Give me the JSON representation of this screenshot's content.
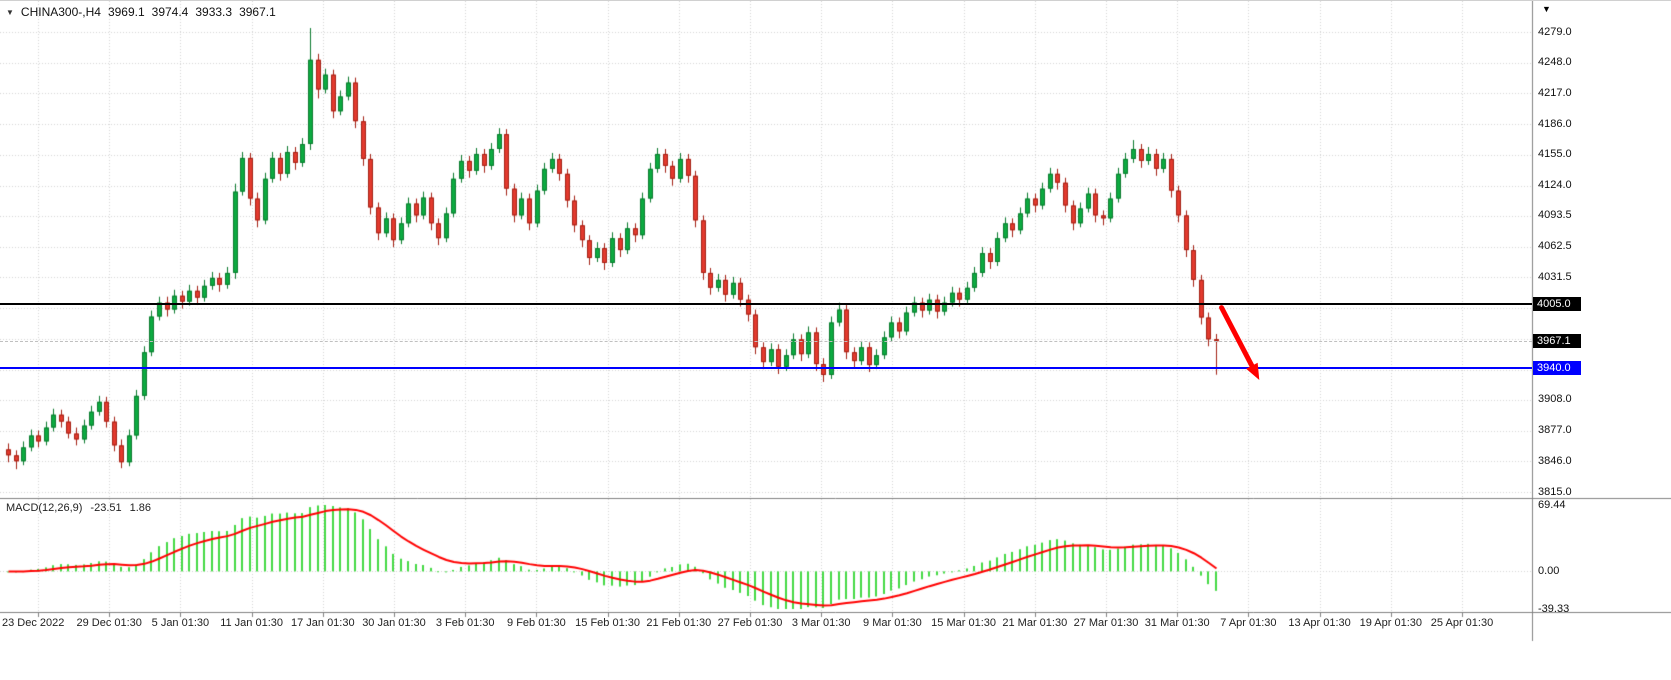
{
  "header": {
    "dropdown_icon": "▼",
    "symbol_period": "CHINA300-,H4",
    "open": "3969.1",
    "high": "3974.4",
    "low": "3933.3",
    "close": "3967.1"
  },
  "price_axis": {
    "top_icon": "▼",
    "labels": [
      {
        "text": "4279.0",
        "value": 4279.0
      },
      {
        "text": "4248.0",
        "value": 4248.0
      },
      {
        "text": "4217.0",
        "value": 4217.0
      },
      {
        "text": "4186.0",
        "value": 4186.0
      },
      {
        "text": "4155.0",
        "value": 4155.0
      },
      {
        "text": "4124.0",
        "value": 4124.0
      },
      {
        "text": "4093.5",
        "value": 4093.5
      },
      {
        "text": "4062.5",
        "value": 4062.5
      },
      {
        "text": "4031.5",
        "value": 4031.5
      },
      {
        "text": "3908.0",
        "value": 3908.0
      },
      {
        "text": "3877.0",
        "value": 3877.0
      },
      {
        "text": "3846.0",
        "value": 3846.0
      },
      {
        "text": "3815.0",
        "value": 3815.0
      }
    ],
    "grid_values": [
      4279,
      4248,
      4217,
      4186,
      4155,
      4124,
      4093.5,
      4062.5,
      4031.5,
      4000.5,
      3969.5,
      3938.5,
      3908,
      3877,
      3846,
      3815
    ]
  },
  "lines": {
    "resistance": {
      "label": "4005.0",
      "value": 4005.0,
      "color": "#000000"
    },
    "bid": {
      "label": "3967.1",
      "value": 3967.1,
      "color": "#000000"
    },
    "support": {
      "label": "3940.0",
      "value": 3940.0,
      "color": "#0000ff"
    }
  },
  "macd": {
    "title": "MACD(12,26,9)",
    "value_main": "-23.51",
    "value_signal": "1.86",
    "axis_labels": [
      {
        "text": "69.44",
        "value": 69.44
      },
      {
        "text": "0.00",
        "value": 0
      },
      {
        "text": "-39.33",
        "value": -39.33
      }
    ]
  },
  "colors": {
    "bull_fill": "#0caa41",
    "bull_edge": "#0b7a2e",
    "bear_fill": "#e23a2e",
    "bear_edge": "#a32014",
    "grid": "#d4d4d4",
    "separator": "#808080",
    "macd_bar": "#44d944",
    "macd_signal": "#ff0000",
    "axis_text": "#111111",
    "arrow": "#ff0000"
  },
  "chart_data": {
    "type": "candlestick",
    "title": "CHINA300- H4 candlestick chart with MACD(12,26,9) sub-window",
    "symbol": "CHINA300-",
    "timeframe": "H4",
    "y_axis": {
      "min": 3815.0,
      "max": 4279.0
    },
    "current_bar": {
      "open": 3969.1,
      "high": 3974.4,
      "low": 3933.3,
      "close": 3967.1
    },
    "x_tick_labels": [
      "23 Dec 2022",
      "29 Dec 01:30",
      "5 Jan 01:30",
      "11 Jan 01:30",
      "17 Jan 01:30",
      "30 Jan 01:30",
      "3 Feb 01:30",
      "9 Feb 01:30",
      "15 Feb 01:30",
      "21 Feb 01:30",
      "27 Feb 01:30",
      "3 Mar 01:30",
      "9 Mar 01:30",
      "15 Mar 01:30",
      "21 Mar 01:30",
      "27 Mar 01:30",
      "31 Mar 01:30",
      "7 Apr 01:30",
      "13 Apr 01:30",
      "19 Apr 01:30",
      "25 Apr 01:30"
    ],
    "candles": [
      [
        3858,
        3864,
        3845,
        3852
      ],
      [
        3852,
        3857,
        3838,
        3846
      ],
      [
        3846,
        3866,
        3842,
        3860
      ],
      [
        3860,
        3878,
        3856,
        3872
      ],
      [
        3872,
        3877,
        3860,
        3866
      ],
      [
        3866,
        3886,
        3862,
        3880
      ],
      [
        3880,
        3899,
        3876,
        3893
      ],
      [
        3893,
        3898,
        3880,
        3886
      ],
      [
        3886,
        3891,
        3869,
        3874
      ],
      [
        3874,
        3880,
        3862,
        3868
      ],
      [
        3868,
        3888,
        3864,
        3882
      ],
      [
        3882,
        3902,
        3878,
        3896
      ],
      [
        3896,
        3912,
        3892,
        3906
      ],
      [
        3906,
        3911,
        3880,
        3886
      ],
      [
        3886,
        3891,
        3856,
        3862
      ],
      [
        3862,
        3868,
        3839,
        3845
      ],
      [
        3845,
        3878,
        3841,
        3872
      ],
      [
        3872,
        3918,
        3868,
        3912
      ],
      [
        3912,
        3962,
        3908,
        3956
      ],
      [
        3956,
        3998,
        3952,
        3992
      ],
      [
        3992,
        4012,
        3988,
        4006
      ],
      [
        4006,
        4012,
        3992,
        3999
      ],
      [
        3999,
        4019,
        3995,
        4013
      ],
      [
        4013,
        4018,
        4000,
        4007
      ],
      [
        4007,
        4024,
        4003,
        4018
      ],
      [
        4018,
        4023,
        4004,
        4011
      ],
      [
        4011,
        4029,
        4007,
        4023
      ],
      [
        4023,
        4037,
        4019,
        4031
      ],
      [
        4031,
        4036,
        4017,
        4024
      ],
      [
        4024,
        4042,
        4020,
        4036
      ],
      [
        4036,
        4126,
        4030,
        4118
      ],
      [
        4118,
        4158,
        4114,
        4152
      ],
      [
        4152,
        4157,
        4104,
        4111
      ],
      [
        4111,
        4117,
        4082,
        4089
      ],
      [
        4089,
        4137,
        4085,
        4131
      ],
      [
        4131,
        4158,
        4127,
        4152
      ],
      [
        4152,
        4157,
        4129,
        4136
      ],
      [
        4136,
        4164,
        4132,
        4158
      ],
      [
        4158,
        4163,
        4140,
        4147
      ],
      [
        4147,
        4172,
        4143,
        4166
      ],
      [
        4166,
        4283,
        4160,
        4251
      ],
      [
        4251,
        4257,
        4212,
        4221
      ],
      [
        4221,
        4242,
        4217,
        4236
      ],
      [
        4236,
        4241,
        4192,
        4199
      ],
      [
        4199,
        4220,
        4195,
        4214
      ],
      [
        4214,
        4234,
        4210,
        4228
      ],
      [
        4228,
        4233,
        4182,
        4189
      ],
      [
        4189,
        4194,
        4144,
        4151
      ],
      [
        4151,
        4156,
        4095,
        4102
      ],
      [
        4102,
        4107,
        4069,
        4076
      ],
      [
        4076,
        4097,
        4072,
        4091
      ],
      [
        4091,
        4096,
        4062,
        4069
      ],
      [
        4069,
        4092,
        4065,
        4086
      ],
      [
        4086,
        4112,
        4082,
        4106
      ],
      [
        4106,
        4111,
        4087,
        4094
      ],
      [
        4094,
        4118,
        4090,
        4112
      ],
      [
        4112,
        4117,
        4079,
        4086
      ],
      [
        4086,
        4091,
        4064,
        4071
      ],
      [
        4071,
        4102,
        4067,
        4096
      ],
      [
        4096,
        4137,
        4092,
        4131
      ],
      [
        4131,
        4155,
        4127,
        4149
      ],
      [
        4149,
        4154,
        4132,
        4139
      ],
      [
        4139,
        4162,
        4135,
        4156
      ],
      [
        4156,
        4161,
        4137,
        4144
      ],
      [
        4144,
        4167,
        4140,
        4161
      ],
      [
        4161,
        4182,
        4157,
        4176
      ],
      [
        4176,
        4181,
        4114,
        4121
      ],
      [
        4121,
        4126,
        4087,
        4094
      ],
      [
        4094,
        4117,
        4090,
        4111
      ],
      [
        4111,
        4116,
        4079,
        4086
      ],
      [
        4086,
        4125,
        4082,
        4119
      ],
      [
        4119,
        4147,
        4115,
        4141
      ],
      [
        4141,
        4157,
        4137,
        4151
      ],
      [
        4151,
        4156,
        4129,
        4136
      ],
      [
        4136,
        4141,
        4102,
        4109
      ],
      [
        4109,
        4114,
        4077,
        4084
      ],
      [
        4084,
        4089,
        4062,
        4069
      ],
      [
        4069,
        4074,
        4044,
        4051
      ],
      [
        4051,
        4067,
        4047,
        4061
      ],
      [
        4061,
        4066,
        4039,
        4046
      ],
      [
        4046,
        4077,
        4042,
        4071
      ],
      [
        4071,
        4076,
        4052,
        4059
      ],
      [
        4059,
        4087,
        4055,
        4081
      ],
      [
        4081,
        4086,
        4067,
        4074
      ],
      [
        4074,
        4117,
        4070,
        4111
      ],
      [
        4111,
        4147,
        4107,
        4141
      ],
      [
        4141,
        4162,
        4137,
        4156
      ],
      [
        4156,
        4161,
        4137,
        4144
      ],
      [
        4144,
        4149,
        4124,
        4131
      ],
      [
        4131,
        4157,
        4127,
        4151
      ],
      [
        4151,
        4156,
        4127,
        4134
      ],
      [
        4134,
        4139,
        4082,
        4089
      ],
      [
        4089,
        4094,
        4029,
        4036
      ],
      [
        4036,
        4041,
        4014,
        4021
      ],
      [
        4021,
        4035,
        4017,
        4029
      ],
      [
        4029,
        4034,
        4007,
        4014
      ],
      [
        4014,
        4032,
        4010,
        4026
      ],
      [
        4026,
        4031,
        4002,
        4009
      ],
      [
        4009,
        4014,
        3987,
        3994
      ],
      [
        3994,
        3999,
        3954,
        3961
      ],
      [
        3961,
        3966,
        3939,
        3946
      ],
      [
        3946,
        3965,
        3942,
        3959
      ],
      [
        3959,
        3964,
        3934,
        3941
      ],
      [
        3941,
        3959,
        3937,
        3953
      ],
      [
        3953,
        3975,
        3949,
        3969
      ],
      [
        3969,
        3974,
        3947,
        3954
      ],
      [
        3954,
        3982,
        3950,
        3976
      ],
      [
        3976,
        3981,
        3937,
        3944
      ],
      [
        3944,
        3950,
        3926,
        3933
      ],
      [
        3933,
        3992,
        3929,
        3986
      ],
      [
        3986,
        4006,
        3982,
        3999
      ],
      [
        3999,
        4004,
        3949,
        3956
      ],
      [
        3956,
        3961,
        3940,
        3947
      ],
      [
        3947,
        3967,
        3943,
        3961
      ],
      [
        3961,
        3966,
        3936,
        3943
      ],
      [
        3943,
        3959,
        3939,
        3953
      ],
      [
        3953,
        3977,
        3949,
        3971
      ],
      [
        3971,
        3992,
        3967,
        3986
      ],
      [
        3986,
        3991,
        3970,
        3977
      ],
      [
        3977,
        4002,
        3973,
        3996
      ],
      [
        3996,
        4012,
        3992,
        4006
      ],
      [
        4006,
        4011,
        3991,
        3998
      ],
      [
        3998,
        4015,
        3994,
        4009
      ],
      [
        4009,
        4014,
        3990,
        3997
      ],
      [
        3997,
        4012,
        3993,
        4006
      ],
      [
        4006,
        4022,
        4002,
        4016
      ],
      [
        4016,
        4021,
        4002,
        4009
      ],
      [
        4009,
        4027,
        4005,
        4021
      ],
      [
        4021,
        4042,
        4017,
        4036
      ],
      [
        4036,
        4062,
        4032,
        4056
      ],
      [
        4056,
        4061,
        4040,
        4047
      ],
      [
        4047,
        4077,
        4043,
        4071
      ],
      [
        4071,
        4092,
        4067,
        4086
      ],
      [
        4086,
        4091,
        4072,
        4079
      ],
      [
        4079,
        4102,
        4075,
        4096
      ],
      [
        4096,
        4117,
        4092,
        4111
      ],
      [
        4111,
        4116,
        4097,
        4104
      ],
      [
        4104,
        4127,
        4100,
        4121
      ],
      [
        4121,
        4142,
        4117,
        4136
      ],
      [
        4136,
        4141,
        4120,
        4127
      ],
      [
        4127,
        4132,
        4097,
        4104
      ],
      [
        4104,
        4109,
        4079,
        4086
      ],
      [
        4086,
        4107,
        4082,
        4101
      ],
      [
        4101,
        4122,
        4097,
        4116
      ],
      [
        4116,
        4121,
        4087,
        4094
      ],
      [
        4094,
        4099,
        4084,
        4091
      ],
      [
        4091,
        4117,
        4087,
        4111
      ],
      [
        4111,
        4142,
        4107,
        4136
      ],
      [
        4136,
        4157,
        4132,
        4151
      ],
      [
        4151,
        4170,
        4147,
        4161
      ],
      [
        4161,
        4166,
        4142,
        4149
      ],
      [
        4149,
        4163,
        4145,
        4156
      ],
      [
        4156,
        4161,
        4134,
        4141
      ],
      [
        4141,
        4157,
        4137,
        4151
      ],
      [
        4151,
        4156,
        4112,
        4119
      ],
      [
        4119,
        4124,
        4087,
        4094
      ],
      [
        4094,
        4099,
        4052,
        4059
      ],
      [
        4059,
        4064,
        4022,
        4029
      ],
      [
        4029,
        4034,
        3984,
        3991
      ],
      [
        3991,
        3996,
        3962,
        3969
      ],
      [
        3969.1,
        3974.4,
        3933.3,
        3967.1
      ]
    ],
    "macd_panel": {
      "params": [
        12,
        26,
        9
      ],
      "y_range": [
        -39.33,
        69.44
      ],
      "last_main": -23.51,
      "last_signal": 1.86
    },
    "annotations": {
      "hlines": [
        {
          "price": 4005.0,
          "color": "#000000",
          "width": 2
        },
        {
          "price": 3940.0,
          "color": "#0000ff",
          "width": 2
        }
      ],
      "bid_line": {
        "price": 3967.1,
        "style": "dashed"
      },
      "arrow": {
        "from_bar": 161,
        "from_price": 4001,
        "to_bar": 166,
        "to_price": 3928,
        "color": "#ff0000"
      }
    }
  }
}
